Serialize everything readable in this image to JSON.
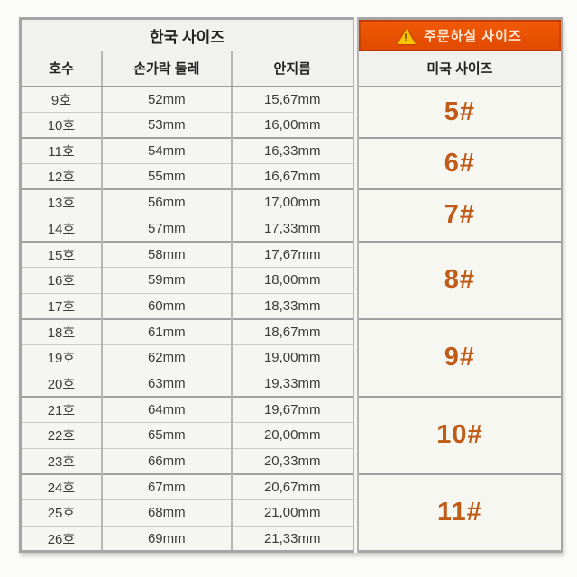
{
  "table": {
    "headers": {
      "korea_group": "한국 사이즈",
      "order_banner": "주문하실 사이즈",
      "col_number": "호수",
      "col_circumference": "손가락 둘레",
      "col_diameter": "안지름",
      "col_us": "미국 사이즈"
    },
    "colors": {
      "banner_bg": "#e85003",
      "banner_text": "#ffe6d4",
      "warning_triangle": "#f6c400",
      "us_size_text": "#c15c18",
      "border_gray": "#b6b6b6",
      "cell_bg": "#f5f5f2"
    },
    "rows": [
      {
        "number": "9호",
        "circumference": "52mm",
        "diameter": "15,67mm"
      },
      {
        "number": "10호",
        "circumference": "53mm",
        "diameter": "16,00mm"
      },
      {
        "number": "11호",
        "circumference": "54mm",
        "diameter": "16,33mm"
      },
      {
        "number": "12호",
        "circumference": "55mm",
        "diameter": "16,67mm"
      },
      {
        "number": "13호",
        "circumference": "56mm",
        "diameter": "17,00mm"
      },
      {
        "number": "14호",
        "circumference": "57mm",
        "diameter": "17,33mm"
      },
      {
        "number": "15호",
        "circumference": "58mm",
        "diameter": "17,67mm"
      },
      {
        "number": "16호",
        "circumference": "59mm",
        "diameter": "18,00mm"
      },
      {
        "number": "17호",
        "circumference": "60mm",
        "diameter": "18,33mm"
      },
      {
        "number": "18호",
        "circumference": "61mm",
        "diameter": "18,67mm"
      },
      {
        "number": "19호",
        "circumference": "62mm",
        "diameter": "19,00mm"
      },
      {
        "number": "20호",
        "circumference": "63mm",
        "diameter": "19,33mm"
      },
      {
        "number": "21호",
        "circumference": "64mm",
        "diameter": "19,67mm"
      },
      {
        "number": "22호",
        "circumference": "65mm",
        "diameter": "20,00mm"
      },
      {
        "number": "23호",
        "circumference": "66mm",
        "diameter": "20,33mm"
      },
      {
        "number": "24호",
        "circumference": "67mm",
        "diameter": "20,67mm"
      },
      {
        "number": "25호",
        "circumference": "68mm",
        "diameter": "21,00mm"
      },
      {
        "number": "26호",
        "circumference": "69mm",
        "diameter": "21,33mm"
      }
    ],
    "us_sizes": [
      {
        "label": "5#",
        "rowspan": 2
      },
      {
        "label": "6#",
        "rowspan": 2
      },
      {
        "label": "7#",
        "rowspan": 2
      },
      {
        "label": "8#",
        "rowspan": 3
      },
      {
        "label": "9#",
        "rowspan": 3
      },
      {
        "label": "10#",
        "rowspan": 3
      },
      {
        "label": "11#",
        "rowspan": 3
      }
    ]
  }
}
